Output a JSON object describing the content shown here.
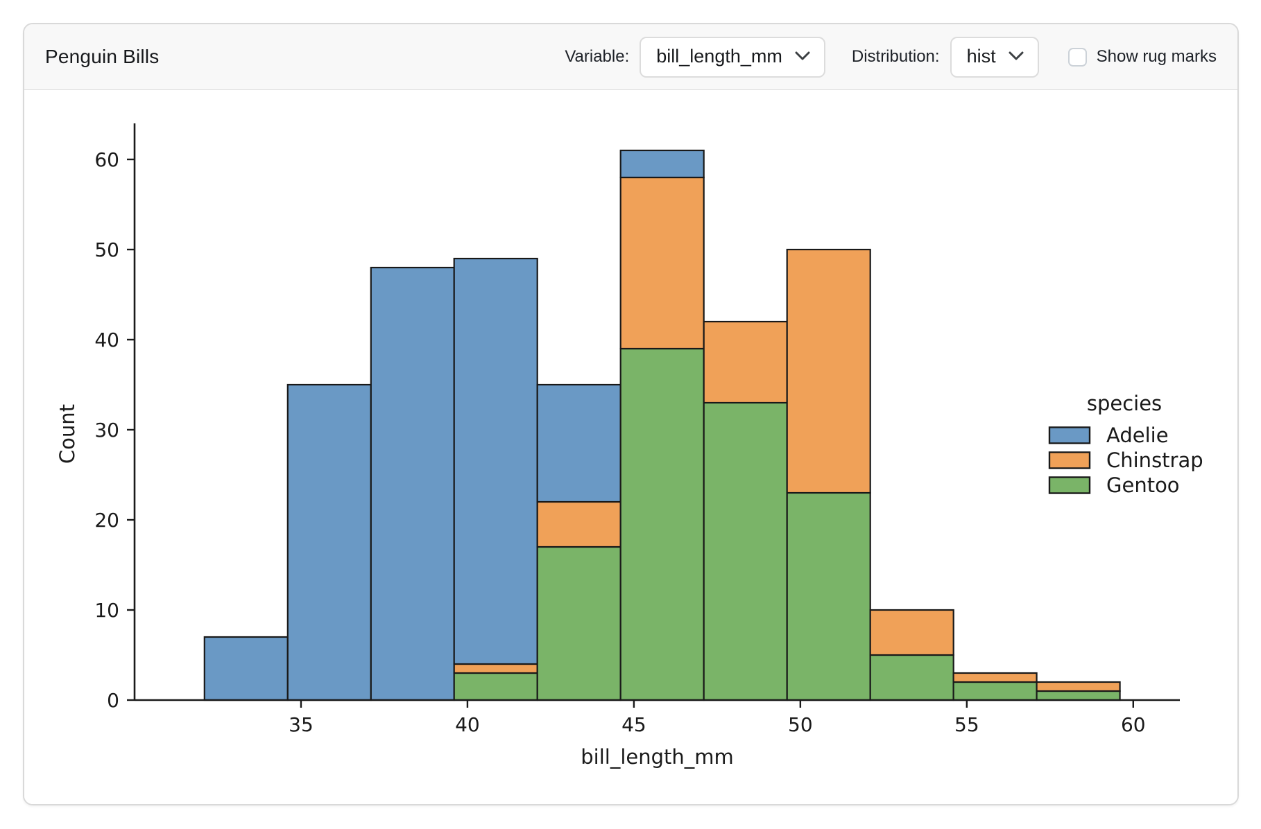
{
  "header": {
    "title": "Penguin Bills",
    "variable_label": "Variable:",
    "variable_value": "bill_length_mm",
    "distribution_label": "Distribution:",
    "distribution_value": "hist",
    "rug_label": "Show rug marks",
    "rug_checked": false
  },
  "chart_data": {
    "type": "bar",
    "subtype": "stacked-histogram",
    "title": "",
    "xlabel": "bill_length_mm",
    "ylabel": "Count",
    "bin_edges": [
      32.1,
      34.6,
      37.1,
      39.6,
      42.1,
      44.6,
      47.1,
      49.6,
      52.1,
      54.6,
      57.1,
      59.6
    ],
    "stack_order": "bottom-to-top",
    "series": [
      {
        "name": "Gentoo",
        "color": "#7ab468",
        "values": [
          0,
          0,
          0,
          3,
          17,
          39,
          33,
          23,
          5,
          2,
          1
        ]
      },
      {
        "name": "Chinstrap",
        "color": "#f0a158",
        "values": [
          0,
          0,
          0,
          1,
          5,
          19,
          9,
          27,
          5,
          1,
          1
        ]
      },
      {
        "name": "Adelie",
        "color": "#6a99c5",
        "values": [
          7,
          35,
          48,
          45,
          13,
          3,
          0,
          0,
          0,
          0,
          0
        ]
      }
    ],
    "stack_totals": [
      7,
      35,
      48,
      49,
      35,
      61,
      42,
      50,
      10,
      3,
      2
    ],
    "x_ticks": [
      35,
      40,
      45,
      50,
      55,
      60
    ],
    "y_ticks": [
      0,
      10,
      20,
      30,
      40,
      50,
      60
    ],
    "xlim": [
      30.0,
      61.4
    ],
    "ylim": [
      0,
      64
    ],
    "grid": false,
    "edge_color": "#191919",
    "legend": {
      "title": "species",
      "position": "right",
      "entries": [
        "Adelie",
        "Chinstrap",
        "Gentoo"
      ]
    }
  }
}
